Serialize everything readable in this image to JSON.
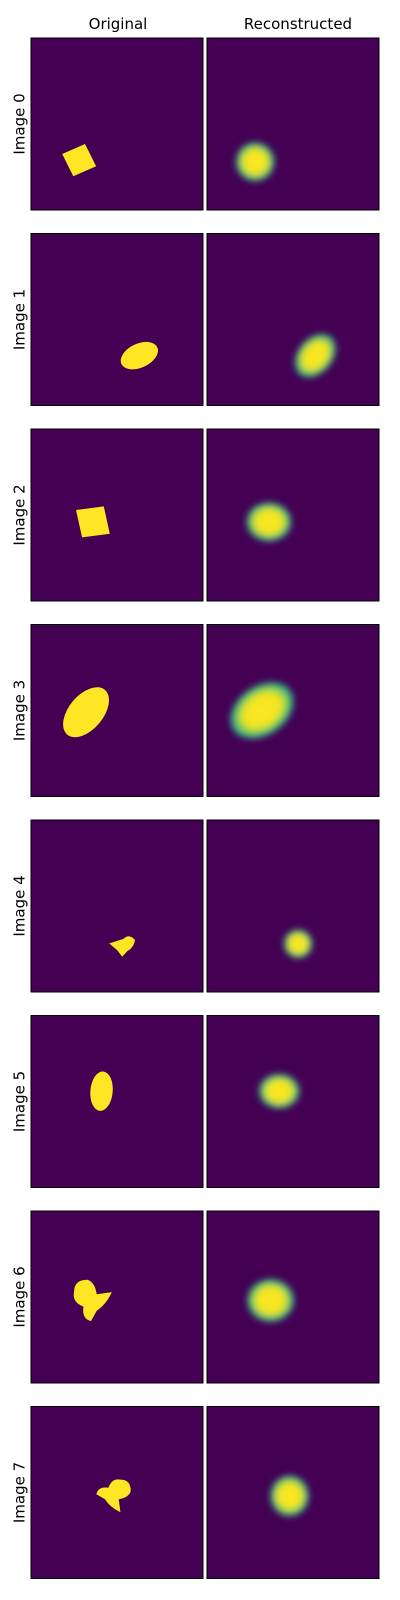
{
  "colors": {
    "background": "#440154",
    "mask": "#fde725",
    "edge": "#21918c",
    "frame": "#000000"
  },
  "chart_data": {
    "type": "image-grid",
    "columns": [
      "Original",
      "Reconstructed"
    ],
    "rows": [
      {
        "label": "Image 0",
        "original": {
          "shape": "diamond",
          "cx": 0.28,
          "cy": 0.71,
          "rx": 0.105,
          "ry": 0.1,
          "angle": 20
        },
        "reconstructed": {
          "shape": "blob",
          "cx": 0.28,
          "cy": 0.72,
          "rx": 0.095,
          "ry": 0.095,
          "angle": 0
        }
      },
      {
        "label": "Image 1",
        "original": {
          "shape": "ellipse",
          "cx": 0.63,
          "cy": 0.71,
          "rx": 0.115,
          "ry": 0.07,
          "angle": -25
        },
        "reconstructed": {
          "shape": "blob",
          "cx": 0.63,
          "cy": 0.71,
          "rx": 0.12,
          "ry": 0.085,
          "angle": -50
        }
      },
      {
        "label": "Image 2",
        "original": {
          "shape": "diamond",
          "cx": 0.36,
          "cy": 0.54,
          "rx": 0.12,
          "ry": 0.11,
          "angle": 35
        },
        "reconstructed": {
          "shape": "blob",
          "cx": 0.36,
          "cy": 0.54,
          "rx": 0.11,
          "ry": 0.095,
          "angle": 0
        }
      },
      {
        "label": "Image 3",
        "original": {
          "shape": "ellipse",
          "cx": 0.32,
          "cy": 0.51,
          "rx": 0.17,
          "ry": 0.1,
          "angle": -50
        },
        "reconstructed": {
          "shape": "blob",
          "cx": 0.32,
          "cy": 0.5,
          "rx": 0.17,
          "ry": 0.12,
          "angle": -35
        }
      },
      {
        "label": "Image 4",
        "original": {
          "shape": "small-blob",
          "cx": 0.53,
          "cy": 0.73,
          "rx": 0.075,
          "ry": 0.065,
          "angle": 10
        },
        "reconstructed": {
          "shape": "blob",
          "cx": 0.53,
          "cy": 0.72,
          "rx": 0.07,
          "ry": 0.07,
          "angle": 0
        }
      },
      {
        "label": "Image 5",
        "original": {
          "shape": "ellipse",
          "cx": 0.41,
          "cy": 0.44,
          "rx": 0.065,
          "ry": 0.115,
          "angle": 5
        },
        "reconstructed": {
          "shape": "blob",
          "cx": 0.42,
          "cy": 0.44,
          "rx": 0.1,
          "ry": 0.085,
          "angle": 0
        }
      },
      {
        "label": "Image 6",
        "original": {
          "shape": "heart-blob",
          "cx": 0.36,
          "cy": 0.52,
          "rx": 0.11,
          "ry": 0.12,
          "angle": 0
        },
        "reconstructed": {
          "shape": "blob",
          "cx": 0.37,
          "cy": 0.52,
          "rx": 0.115,
          "ry": 0.105,
          "angle": 0
        }
      },
      {
        "label": "Image 7",
        "original": {
          "shape": "heart-blob",
          "cx": 0.48,
          "cy": 0.52,
          "rx": 0.095,
          "ry": 0.1,
          "angle": 90
        },
        "reconstructed": {
          "shape": "blob",
          "cx": 0.48,
          "cy": 0.52,
          "rx": 0.095,
          "ry": 0.1,
          "angle": 0
        }
      }
    ]
  }
}
